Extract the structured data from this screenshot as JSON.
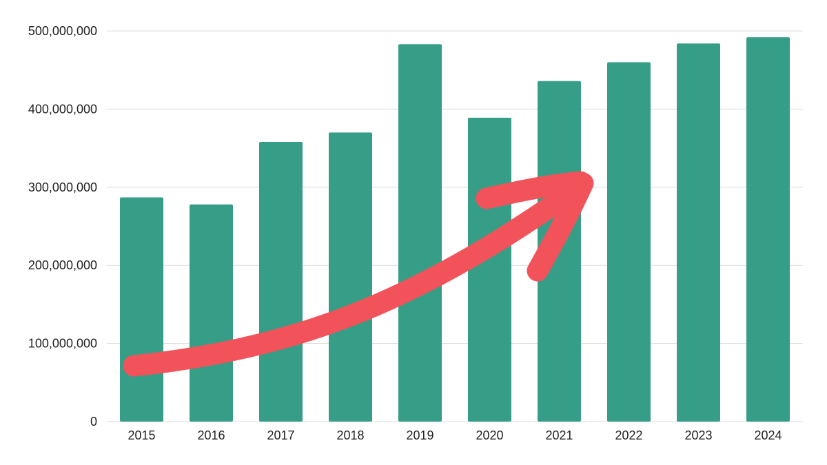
{
  "chart_data": {
    "type": "bar",
    "title": "",
    "xlabel": "",
    "ylabel": "",
    "categories": [
      "2015",
      "2016",
      "2017",
      "2018",
      "2019",
      "2020",
      "2021",
      "2022",
      "2023",
      "2024"
    ],
    "values": [
      287000000,
      278000000,
      358000000,
      370000000,
      483000000,
      389000000,
      436000000,
      460000000,
      484000000,
      492000000
    ],
    "ylim": [
      0,
      500000000
    ],
    "yticks": [
      0,
      100000000,
      200000000,
      300000000,
      400000000,
      500000000
    ],
    "ytick_labels": [
      "0",
      "100,000,000",
      "200,000,000",
      "300,000,000",
      "400,000,000",
      "500,000,000"
    ],
    "grid": true,
    "legend": "none",
    "colors": {
      "bar": "#369e87",
      "arrow": "#f2525a",
      "grid": "#dcdcdc",
      "text": "#222222"
    },
    "annotation": {
      "type": "arrow",
      "icon": "upward-trend-arrow-icon"
    }
  }
}
